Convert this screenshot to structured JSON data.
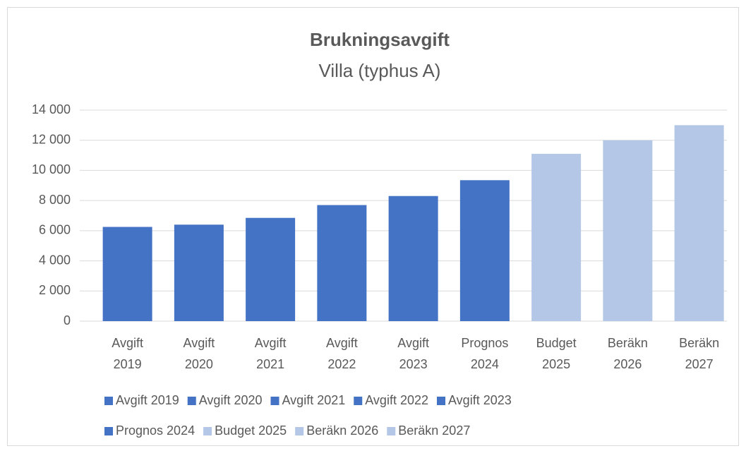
{
  "chart_data": {
    "type": "bar",
    "title": "Brukningsavgift",
    "subtitle": "Villa (typhus A)",
    "categories": [
      "Avgift 2019",
      "Avgift 2020",
      "Avgift 2021",
      "Avgift 2022",
      "Avgift 2023",
      "Prognos 2024",
      "Budget 2025",
      "Beräkn 2026",
      "Beräkn 2027"
    ],
    "values": [
      6250,
      6400,
      6850,
      7700,
      8300,
      9350,
      11100,
      12000,
      13000
    ],
    "colors": [
      "#4472c4",
      "#4472c4",
      "#4472c4",
      "#4472c4",
      "#4472c4",
      "#4472c4",
      "#b4c7e7",
      "#b4c7e7",
      "#b4c7e7"
    ],
    "ylim": [
      0,
      14000
    ],
    "yticks": [
      0,
      {
        "value": 2000,
        "label": "2 000"
      },
      {
        "value": 4000,
        "label": "4 000"
      },
      {
        "value": 6000,
        "label": "6 000"
      },
      {
        "value": 8000,
        "label": "8 000"
      },
      {
        "value": 10000,
        "label": "10 000"
      },
      {
        "value": 12000,
        "label": "12 000"
      },
      {
        "value": 14000,
        "label": "14 000"
      }
    ],
    "grid": true,
    "legend": "bottom"
  }
}
